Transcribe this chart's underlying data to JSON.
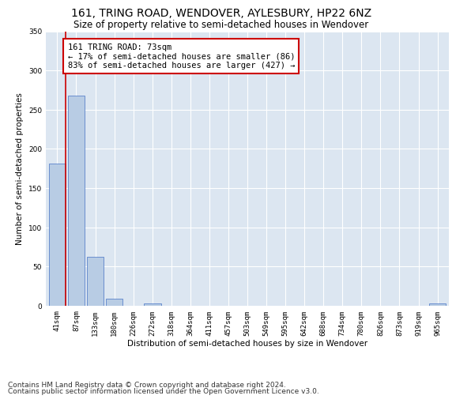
{
  "title": "161, TRING ROAD, WENDOVER, AYLESBURY, HP22 6NZ",
  "subtitle": "Size of property relative to semi-detached houses in Wendover",
  "xlabel": "Distribution of semi-detached houses by size in Wendover",
  "ylabel": "Number of semi-detached properties",
  "categories": [
    "41sqm",
    "87sqm",
    "133sqm",
    "180sqm",
    "226sqm",
    "272sqm",
    "318sqm",
    "364sqm",
    "411sqm",
    "457sqm",
    "503sqm",
    "549sqm",
    "595sqm",
    "642sqm",
    "688sqm",
    "734sqm",
    "780sqm",
    "826sqm",
    "873sqm",
    "919sqm",
    "965sqm"
  ],
  "values": [
    181,
    268,
    62,
    9,
    0,
    3,
    0,
    0,
    0,
    0,
    0,
    0,
    0,
    0,
    0,
    0,
    0,
    0,
    0,
    0,
    3
  ],
  "bar_color": "#b8cce4",
  "bar_edge_color": "#4472c4",
  "annotation_text": "161 TRING ROAD: 73sqm\n← 17% of semi-detached houses are smaller (86)\n83% of semi-detached houses are larger (427) →",
  "annotation_box_color": "#ffffff",
  "annotation_box_edge": "#cc0000",
  "vline_color": "#cc0000",
  "ylim": [
    0,
    350
  ],
  "yticks": [
    0,
    50,
    100,
    150,
    200,
    250,
    300,
    350
  ],
  "plot_bg_color": "#dce6f1",
  "footer_line1": "Contains HM Land Registry data © Crown copyright and database right 2024.",
  "footer_line2": "Contains public sector information licensed under the Open Government Licence v3.0.",
  "title_fontsize": 10,
  "subtitle_fontsize": 8.5,
  "axis_label_fontsize": 7.5,
  "tick_fontsize": 6.5,
  "annotation_fontsize": 7.5,
  "footer_fontsize": 6.5
}
